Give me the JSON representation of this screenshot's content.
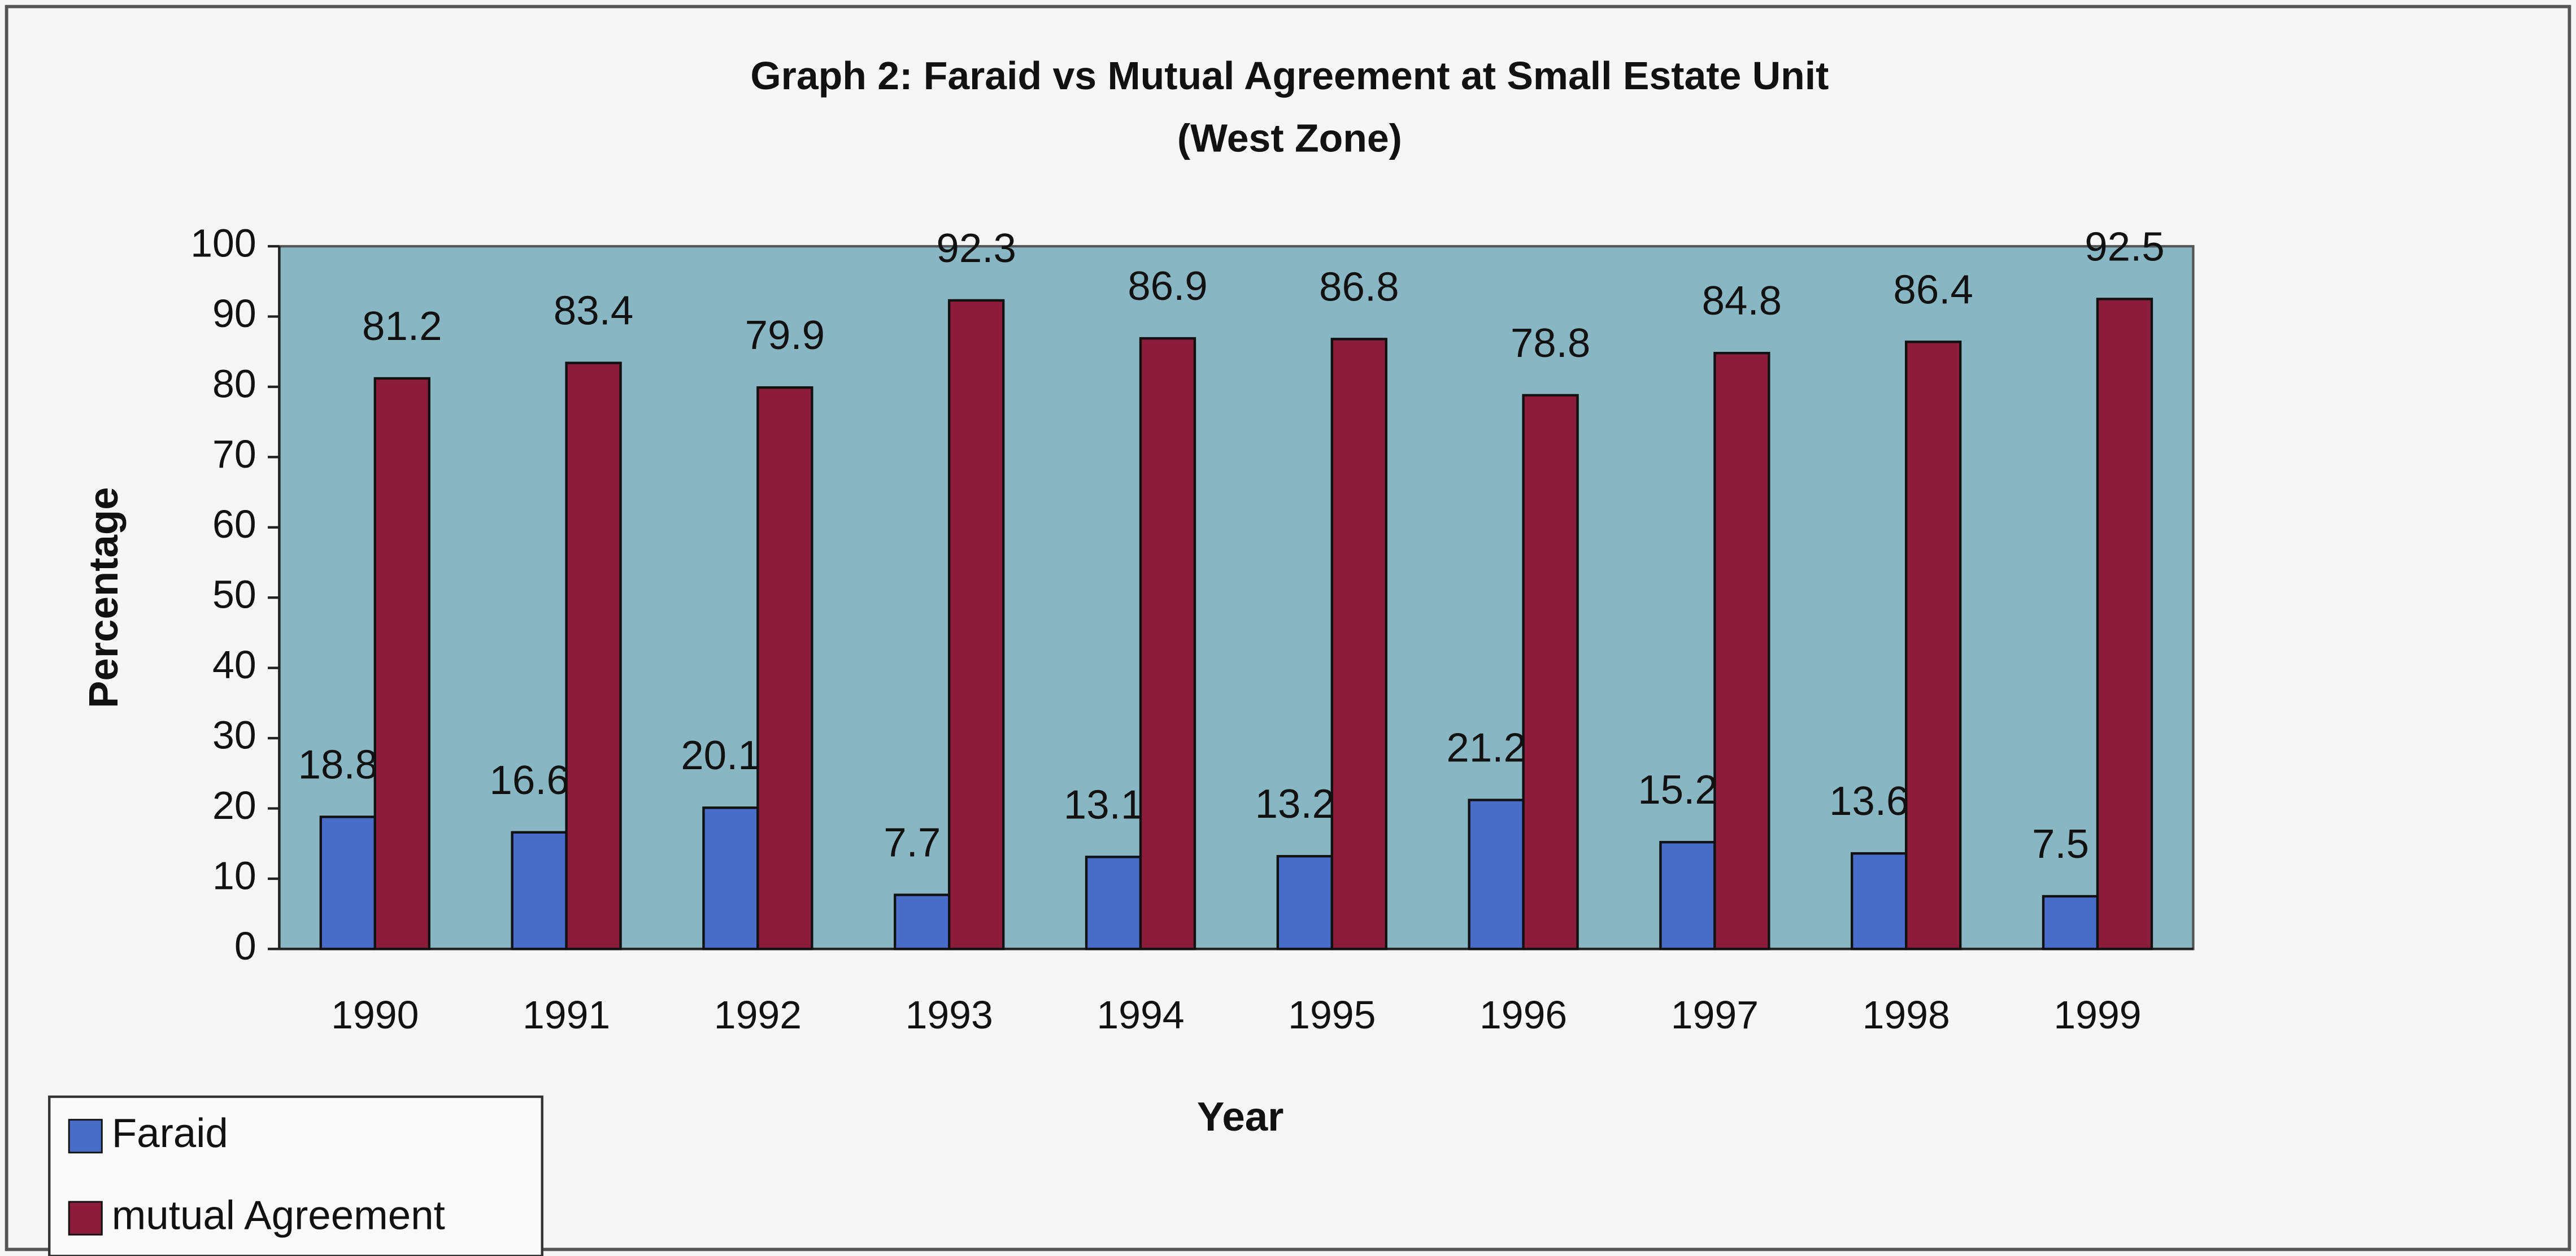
{
  "chart_data": {
    "type": "bar",
    "title": "Graph 2: Faraid vs Mutual Agreement at Small Estate Unit",
    "subtitle": "(West Zone)",
    "x_label": "Year",
    "y_label": "Percentage",
    "categories": [
      "1990",
      "1991",
      "1992",
      "1993",
      "1994",
      "1995",
      "1996",
      "1997",
      "1998",
      "1999"
    ],
    "series": [
      {
        "name": "Faraid",
        "color": "#4a6cc9",
        "values": [
          18.8,
          16.6,
          20.1,
          7.7,
          13.1,
          13.2,
          21.2,
          15.2,
          13.6,
          7.5
        ]
      },
      {
        "name": "mutual Agreement",
        "color": "#8c1c3c",
        "values": [
          81.2,
          83.4,
          79.9,
          92.3,
          86.9,
          86.8,
          78.8,
          84.8,
          86.4,
          92.5
        ]
      }
    ],
    "ylim": [
      0,
      100
    ],
    "yticks": [
      0,
      10,
      20,
      30,
      40,
      50,
      60,
      70,
      80,
      90,
      100
    ],
    "grid": false,
    "legend": "bottom-left",
    "plot_background": "#88b7c3"
  }
}
